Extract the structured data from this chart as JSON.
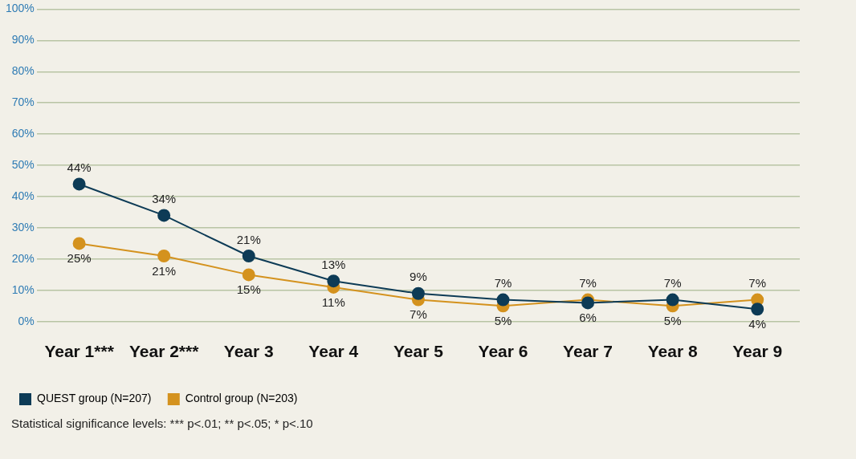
{
  "chart_data": {
    "type": "line",
    "categories": [
      "Year 1***",
      "Year 2***",
      "Year 3",
      "Year 4",
      "Year 5",
      "Year 6",
      "Year 7",
      "Year 8",
      "Year 9"
    ],
    "series": [
      {
        "name": "QUEST group (N=207)",
        "color": "#0d3b56",
        "values": [
          44,
          34,
          21,
          13,
          9,
          7,
          6,
          7,
          4
        ],
        "value_labels": [
          "44%",
          "34%",
          "21%",
          "13%",
          "9%",
          "7%",
          "6%",
          "7%",
          "4%"
        ]
      },
      {
        "name": "Control group (N=203)",
        "color": "#d4921e",
        "values": [
          25,
          21,
          15,
          11,
          7,
          5,
          7,
          5,
          7
        ],
        "value_labels": [
          "25%",
          "21%",
          "15%",
          "11%",
          "7%",
          "5%",
          "7%",
          "5%",
          "7%"
        ]
      }
    ],
    "ylim": [
      0,
      100
    ],
    "yticks": [
      {
        "value": 0,
        "label": "0%"
      },
      {
        "value": 10,
        "label": "10%"
      },
      {
        "value": 20,
        "label": "20%"
      },
      {
        "value": 30,
        "label": "30%"
      },
      {
        "value": 40,
        "label": "40%"
      },
      {
        "value": 50,
        "label": "50%"
      },
      {
        "value": 60,
        "label": "60%"
      },
      {
        "value": 70,
        "label": "70%"
      },
      {
        "value": 80,
        "label": "80%"
      },
      {
        "value": 90,
        "label": "90%"
      },
      {
        "value": 100,
        "label": "100%"
      }
    ],
    "grid": "y",
    "legend": "bottom left",
    "marker": "circle",
    "line_style": "solid",
    "annotations": [
      "Statistical significance levels: *** p<.01; ** p<.05; * p<.10"
    ]
  }
}
